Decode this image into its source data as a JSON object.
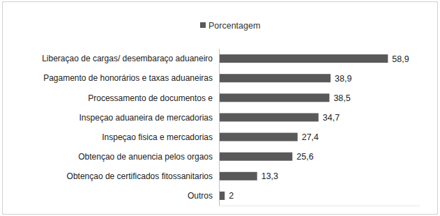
{
  "chart_data": {
    "type": "bar",
    "orientation": "horizontal",
    "categories": [
      "Liberaçao de cargas/ desembaraço aduaneiro",
      "Pagamento de honorários e taxas aduaneiras",
      "Processamento de documentos e",
      "Inspeçao aduaneira de mercadorias",
      "Inspeçao fisica e mercadorias",
      "Obtençao de anuencia pelos orgaos",
      "Obtençao de certificados fitossanitarios",
      "Outros"
    ],
    "series": [
      {
        "name": "Porcentagem",
        "color": "#595959",
        "values": [
          58.9,
          38.9,
          38.5,
          34.7,
          27.4,
          25.6,
          13.3,
          2
        ],
        "value_labels": [
          "58,9",
          "38,9",
          "38,5",
          "34,7",
          "27,4",
          "25,6",
          "13,3",
          "2"
        ]
      }
    ],
    "xlim": [
      0,
      70
    ],
    "legend": "top",
    "data_labels": true,
    "grid": false,
    "tick_labels": "y"
  }
}
